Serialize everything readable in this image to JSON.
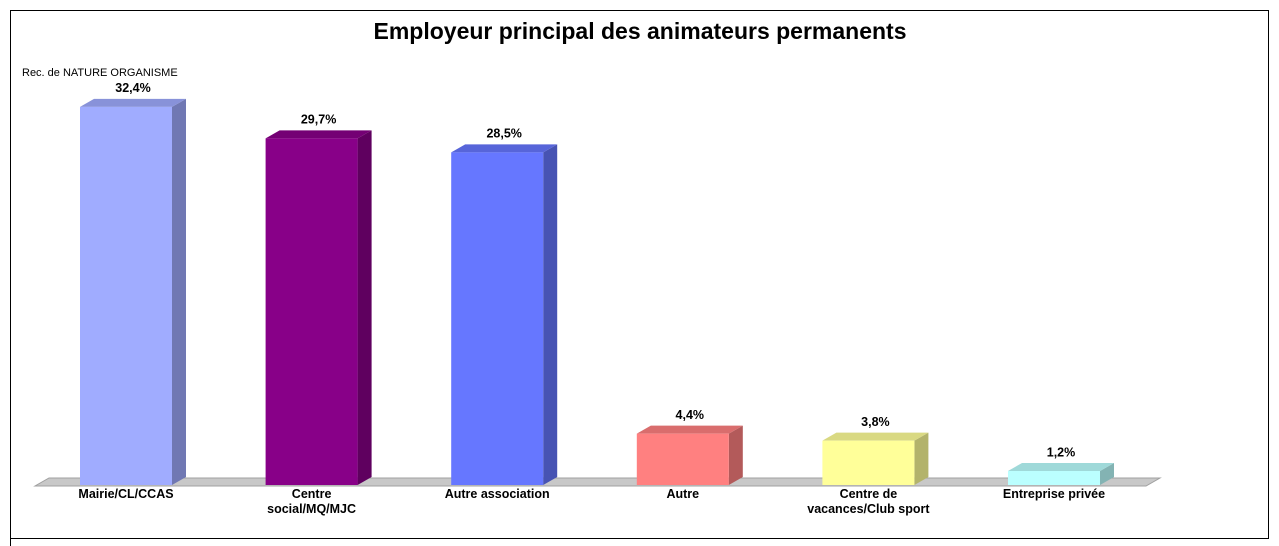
{
  "chart_data": {
    "type": "bar3d",
    "title": "Employeur principal des animateurs permanents",
    "subtitle": "Rec. de NATURE ORGANISME",
    "categories": [
      "Mairie/CL/CCAS",
      "Centre social/MQ/MJC",
      "Autre association",
      "Autre",
      "Centre de vacances/Club sport",
      "Entreprise privée"
    ],
    "values": [
      32.4,
      29.7,
      28.5,
      4.4,
      3.8,
      1.2
    ],
    "value_labels": [
      "32,4%",
      "29,7%",
      "28,5%",
      "4,4%",
      "3,8%",
      "1,2%"
    ],
    "colors": [
      "#a0acff",
      "#880088",
      "#6677ff",
      "#ff8080",
      "#ffff99",
      "#bbffff"
    ]
  }
}
